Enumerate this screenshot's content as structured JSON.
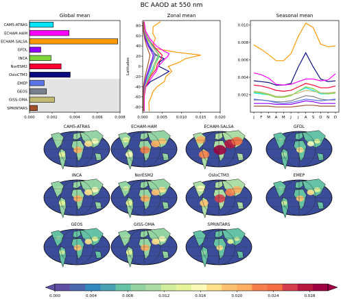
{
  "figure": {
    "title": "BC AAOD at 550 nm"
  },
  "colors": {
    "ocean": "#3b4d9a",
    "land": "#4a77b0",
    "panel_shade": "#e4e4e4"
  },
  "chart_data": [
    {
      "type": "bar",
      "orientation": "horizontal",
      "title": "Global mean",
      "categories": [
        "CAM5-ATRAS",
        "ECHAM-HAM",
        "ECHAM-SALSA",
        "GFDL",
        "INCA",
        "NorESM2",
        "OsloCTM3",
        "EMEP",
        "GEOS",
        "GISS-OMA",
        "SPRINTARS"
      ],
      "values": [
        0.0021,
        0.0035,
        0.0078,
        0.001,
        0.0019,
        0.0028,
        0.0036,
        0.0013,
        0.0015,
        0.0022,
        0.0007
      ],
      "colors": [
        "#00e5ff",
        "#ff00ff",
        "#ff9900",
        "#8e00ff",
        "#7fd63a",
        "#ff0033",
        "#0a0a80",
        "#5a73e6",
        "#77808a",
        "#c2ba70",
        "#a3502a"
      ],
      "xlim": [
        0,
        0.008
      ],
      "xticks": [
        "0.000",
        "0.002",
        "0.004",
        "0.006",
        "0.008"
      ],
      "shaded_from_category": "EMEP"
    },
    {
      "type": "line",
      "title": "Zonal mean",
      "ylabel": "Latitudes",
      "xlim": [
        0,
        0.02
      ],
      "ylim": [
        -90,
        90
      ],
      "xticks": [
        "0.000",
        "0.005",
        "0.010",
        "0.015",
        "0.020"
      ],
      "yticks": [
        "-80",
        "-60",
        "-40",
        "-20",
        "0",
        "20",
        "40",
        "60",
        "80"
      ],
      "series": [
        {
          "color": "#ff9900",
          "lat": [
            -88,
            -70,
            -60,
            -50,
            -40,
            -30,
            -20,
            -10,
            0,
            8,
            15,
            22,
            28,
            35,
            45,
            55,
            65,
            78,
            88
          ],
          "values": [
            0.0017,
            0.0016,
            0.0022,
            0.0026,
            0.0037,
            0.0056,
            0.006,
            0.0075,
            0.0066,
            0.0095,
            0.011,
            0.015,
            0.0085,
            0.0032,
            0.0027,
            0.0033,
            0.0026,
            0.0027,
            0.0046
          ]
        },
        {
          "color": "#0a0a80",
          "lat": [
            -88,
            -60,
            -40,
            -30,
            -20,
            -10,
            0,
            8,
            15,
            22,
            30,
            40,
            55,
            70,
            88
          ],
          "values": [
            0.0003,
            0.0003,
            0.0008,
            0.002,
            0.0045,
            0.0068,
            0.0042,
            0.0043,
            0.0055,
            0.0035,
            0.0025,
            0.0015,
            0.0006,
            0.0003,
            0.0003
          ]
        },
        {
          "color": "#ff00ff",
          "lat": [
            -88,
            -60,
            -40,
            -20,
            -10,
            0,
            10,
            20,
            25,
            30,
            40,
            55,
            70,
            88
          ],
          "values": [
            0.0004,
            0.0004,
            0.0008,
            0.0025,
            0.0035,
            0.004,
            0.0052,
            0.0065,
            0.0068,
            0.0055,
            0.0035,
            0.0018,
            0.0007,
            0.0004
          ]
        },
        {
          "color": "#ff0033",
          "lat": [
            -88,
            -60,
            -40,
            -20,
            -5,
            5,
            15,
            22,
            30,
            40,
            55,
            70,
            88
          ],
          "values": [
            0.0003,
            0.0003,
            0.0007,
            0.002,
            0.0035,
            0.0038,
            0.0048,
            0.005,
            0.004,
            0.0028,
            0.0014,
            0.0005,
            0.0003
          ]
        },
        {
          "color": "#00e5ff",
          "lat": [
            -88,
            -60,
            -40,
            -20,
            -5,
            5,
            15,
            22,
            30,
            40,
            55,
            70,
            88
          ],
          "values": [
            0.0002,
            0.0002,
            0.0005,
            0.0015,
            0.0025,
            0.003,
            0.0038,
            0.0042,
            0.0036,
            0.0026,
            0.0013,
            0.0004,
            0.0002
          ]
        },
        {
          "color": "#7fd63a",
          "lat": [
            -88,
            -60,
            -40,
            -20,
            -5,
            5,
            15,
            22,
            30,
            40,
            55,
            70,
            88
          ],
          "values": [
            0.0002,
            0.0002,
            0.0006,
            0.0018,
            0.003,
            0.0033,
            0.004,
            0.0043,
            0.0035,
            0.0024,
            0.0012,
            0.0004,
            0.0002
          ]
        },
        {
          "color": "#c2ba70",
          "lat": [
            -88,
            -60,
            -40,
            -20,
            -5,
            5,
            15,
            22,
            30,
            40,
            55,
            70,
            88
          ],
          "values": [
            0.0002,
            0.0002,
            0.0006,
            0.0017,
            0.0028,
            0.003,
            0.0036,
            0.004,
            0.0034,
            0.0023,
            0.0011,
            0.0004,
            0.0002
          ]
        },
        {
          "color": "#77808a",
          "lat": [
            -88,
            -60,
            -40,
            -20,
            -5,
            5,
            15,
            22,
            30,
            40,
            55,
            70,
            88
          ],
          "values": [
            0.0001,
            0.0001,
            0.0004,
            0.0012,
            0.002,
            0.0024,
            0.003,
            0.0033,
            0.0027,
            0.0018,
            0.0009,
            0.0003,
            0.0001
          ]
        },
        {
          "color": "#5a73e6",
          "lat": [
            -88,
            -60,
            -40,
            -20,
            -5,
            5,
            15,
            22,
            30,
            40,
            55,
            70,
            88
          ],
          "values": [
            0.0001,
            0.0001,
            0.0004,
            0.001,
            0.0018,
            0.0022,
            0.0027,
            0.003,
            0.0026,
            0.0017,
            0.0008,
            0.0002,
            0.0001
          ]
        },
        {
          "color": "#8e00ff",
          "lat": [
            -88,
            -60,
            -40,
            -20,
            -5,
            5,
            15,
            22,
            30,
            40,
            55,
            70,
            88
          ],
          "values": [
            0.0001,
            0.0001,
            0.0003,
            0.0009,
            0.0016,
            0.002,
            0.0025,
            0.0027,
            0.0022,
            0.0014,
            0.0007,
            0.0002,
            0.0001
          ]
        },
        {
          "color": "#a3502a",
          "lat": [
            -88,
            -60,
            -40,
            -20,
            -5,
            5,
            15,
            22,
            30,
            40,
            55,
            70,
            88
          ],
          "values": [
            0.0001,
            0.0001,
            0.0002,
            0.0006,
            0.0011,
            0.0014,
            0.0017,
            0.0019,
            0.0015,
            0.001,
            0.0005,
            0.0002,
            0.0001
          ]
        }
      ]
    },
    {
      "type": "line",
      "title": "Seasonal mean",
      "categories": [
        "J",
        "F",
        "M",
        "A",
        "M",
        "J",
        "J",
        "A",
        "S",
        "O",
        "N",
        "D"
      ],
      "ylim": [
        0,
        0.0105
      ],
      "yticks": [
        "0.002",
        "0.004",
        "0.006",
        "0.008",
        "0.010"
      ],
      "series": [
        {
          "color": "#ff9900",
          "values": [
            0.0077,
            0.0072,
            0.0066,
            0.0059,
            0.0059,
            0.0067,
            0.0087,
            0.0102,
            0.0097,
            0.0078,
            0.0075,
            0.0076
          ]
        },
        {
          "color": "#0a0a80",
          "values": [
            0.0036,
            0.0035,
            0.0034,
            0.0031,
            0.0031,
            0.0033,
            0.0052,
            0.0068,
            0.0052,
            0.0038,
            0.0035,
            0.0036
          ]
        },
        {
          "color": "#ff00ff",
          "values": [
            0.0045,
            0.0043,
            0.0039,
            0.0032,
            0.0031,
            0.0032,
            0.0035,
            0.0038,
            0.0038,
            0.0036,
            0.0037,
            0.0044
          ]
        },
        {
          "color": "#ff0033",
          "values": [
            0.0031,
            0.003,
            0.0028,
            0.0025,
            0.0024,
            0.0025,
            0.0029,
            0.0033,
            0.0031,
            0.0028,
            0.0028,
            0.003
          ]
        },
        {
          "color": "#00e5ff",
          "values": [
            0.0022,
            0.0021,
            0.002,
            0.0018,
            0.0018,
            0.0019,
            0.0024,
            0.0028,
            0.0025,
            0.0021,
            0.0021,
            0.0022
          ]
        },
        {
          "color": "#7fd63a",
          "values": [
            0.0023,
            0.0022,
            0.002,
            0.0017,
            0.0017,
            0.0019,
            0.0024,
            0.0029,
            0.0027,
            0.0022,
            0.0021,
            0.0022
          ]
        },
        {
          "color": "#c2ba70",
          "values": [
            0.0024,
            0.0023,
            0.0021,
            0.0018,
            0.0018,
            0.002,
            0.0022,
            0.0025,
            0.0024,
            0.0022,
            0.0022,
            0.0023
          ]
        },
        {
          "color": "#77808a",
          "values": [
            0.0014,
            0.0014,
            0.0013,
            0.0012,
            0.0012,
            0.0013,
            0.0016,
            0.0019,
            0.0018,
            0.0015,
            0.0014,
            0.0014
          ]
        },
        {
          "color": "#5a73e6",
          "values": [
            0.0015,
            0.0014,
            0.0013,
            0.0011,
            0.001,
            0.0011,
            0.0013,
            0.0015,
            0.0014,
            0.0013,
            0.0014,
            0.0015
          ]
        },
        {
          "color": "#8e00ff",
          "values": [
            0.001,
            0.001,
            0.001,
            0.0009,
            0.0009,
            0.0009,
            0.0011,
            0.0013,
            0.0012,
            0.001,
            0.001,
            0.001
          ]
        },
        {
          "color": "#a3502a",
          "values": [
            0.0007,
            0.0007,
            0.0007,
            0.0006,
            0.0006,
            0.0006,
            0.0007,
            0.0008,
            0.0008,
            0.0007,
            0.0007,
            0.0007
          ]
        }
      ]
    },
    {
      "type": "heatmap",
      "subtype": "map-panels",
      "panels": [
        {
          "title": "CAM5-ATRAS",
          "intensity": 0.45
        },
        {
          "title": "ECHAM-HAM",
          "intensity": 0.6
        },
        {
          "title": "ECHAM-SALSA",
          "intensity": 1.0
        },
        {
          "title": "GFDL",
          "intensity": 0.3
        },
        {
          "title": "INCA",
          "intensity": 0.45
        },
        {
          "title": "NorESM2",
          "intensity": 0.5
        },
        {
          "title": "OsloCTM3",
          "intensity": 0.75
        },
        {
          "title": "EMEP",
          "intensity": 0.35
        },
        {
          "title": "GEOS",
          "intensity": 0.35
        },
        {
          "title": "GISS-OMA",
          "intensity": 0.45
        },
        {
          "title": "SPRINTARS",
          "intensity": 0.2
        }
      ],
      "colorbar": {
        "range": [
          0,
          0.03
        ],
        "ticks": [
          "0.000",
          "0.004",
          "0.008",
          "0.012",
          "0.016",
          "0.020",
          "0.024",
          "0.028"
        ],
        "colors": [
          "#5e4fa2",
          "#4a67ae",
          "#3288bd",
          "#48a0b2",
          "#66c2a5",
          "#94d4a4",
          "#abdda4",
          "#d0ec9c",
          "#e6f598",
          "#fafbb8",
          "#fee08b",
          "#fdc172",
          "#fdae61",
          "#f67f4e",
          "#f46d43",
          "#d53e4f",
          "#b4183f",
          "#9e0142"
        ]
      }
    }
  ]
}
